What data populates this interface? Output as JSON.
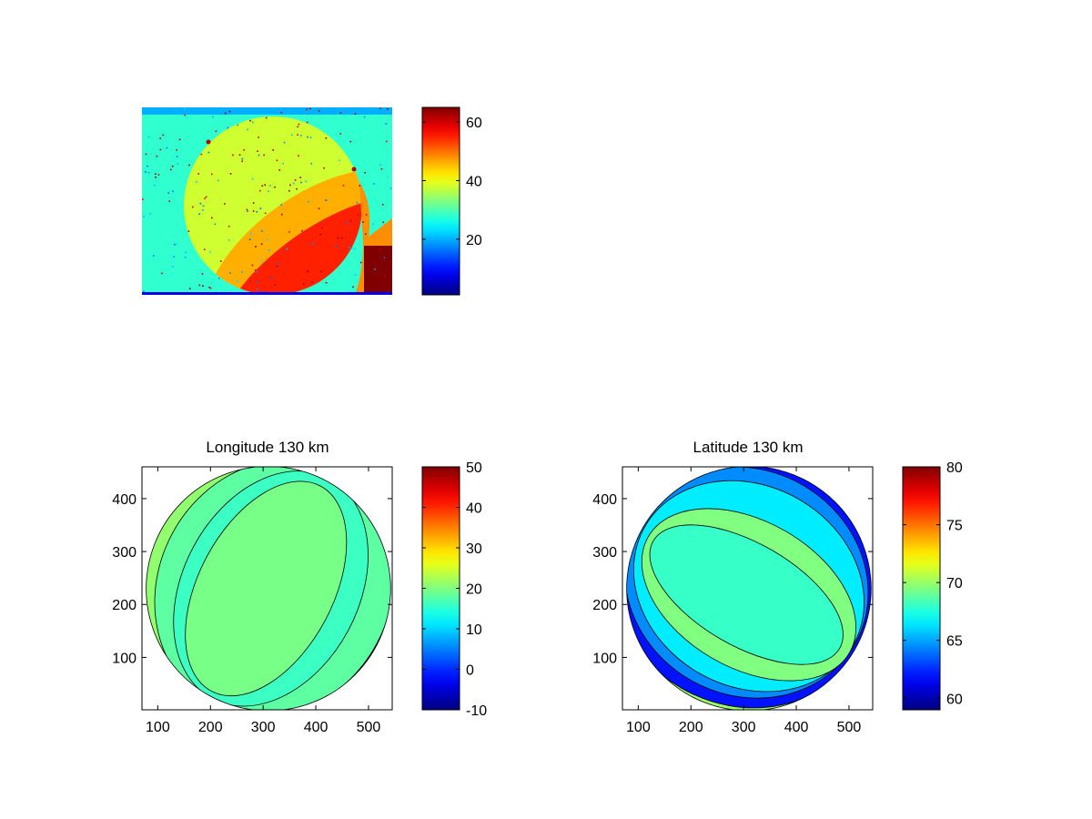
{
  "figure": {
    "background": "#ffffff",
    "colormap": "jet"
  },
  "chart_data": [
    {
      "id": "image-panel",
      "type": "heatmap",
      "title": "",
      "xlabel": "",
      "ylabel": "",
      "axes_ticks": "hidden",
      "description_values": {
        "background_level": 28,
        "disk_level": 38,
        "disk_rim_level": 55,
        "corner_level": 65
      },
      "colorbar": {
        "clim": [
          1,
          65
        ],
        "ticks": [
          20,
          40,
          60
        ],
        "tick_labels": [
          "20",
          "40",
          "60"
        ]
      }
    },
    {
      "id": "longitude-panel",
      "type": "heatmap",
      "title": "Longitude 130 km",
      "xlabel": "",
      "ylabel": "",
      "xlim": [
        70,
        545
      ],
      "ylim": [
        1,
        460
      ],
      "x_ticks": [
        100,
        200,
        300,
        400,
        500
      ],
      "x_tick_labels": [
        "100",
        "200",
        "300",
        "400",
        "500"
      ],
      "y_ticks": [
        100,
        200,
        300,
        400
      ],
      "y_tick_labels": [
        "100",
        "200",
        "300",
        "400"
      ],
      "disk": {
        "center": [
          310,
          230
        ],
        "radius": 232
      },
      "contour_levels": [
        -10,
        0,
        10,
        15,
        20,
        25,
        30,
        35
      ],
      "colorbar": {
        "clim": [
          -10,
          50
        ],
        "ticks": [
          -10,
          0,
          10,
          20,
          30,
          40,
          50
        ],
        "tick_labels": [
          "-10",
          "0",
          "10",
          "20",
          "30",
          "40",
          "50"
        ]
      }
    },
    {
      "id": "latitude-panel",
      "type": "heatmap",
      "title": "Latitude 130 km",
      "xlabel": "",
      "ylabel": "",
      "xlim": [
        70,
        545
      ],
      "ylim": [
        1,
        460
      ],
      "x_ticks": [
        100,
        200,
        300,
        400,
        500
      ],
      "x_tick_labels": [
        "100",
        "200",
        "300",
        "400",
        "500"
      ],
      "y_ticks": [
        100,
        200,
        300,
        400
      ],
      "y_tick_labels": [
        "100",
        "200",
        "300",
        "400"
      ],
      "disk": {
        "center": [
          310,
          230
        ],
        "radius": 232
      },
      "contour_levels": [
        60,
        62,
        64,
        66,
        68,
        70,
        72,
        74
      ],
      "colorbar": {
        "clim": [
          59,
          80
        ],
        "ticks": [
          60,
          65,
          70,
          75,
          80
        ],
        "tick_labels": [
          "60",
          "65",
          "70",
          "75",
          "80"
        ]
      }
    }
  ]
}
